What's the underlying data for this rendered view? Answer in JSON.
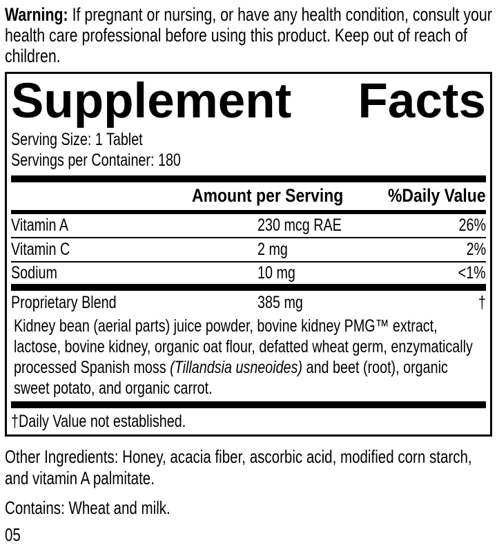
{
  "warning": {
    "lead": "Warning:",
    "text": "If pregnant or nursing, or have any health condition, consult your health care professional before using this product. Keep out of reach of children."
  },
  "panel": {
    "title_word1": "Supplement",
    "title_word2": "Facts",
    "serving_size": "Serving Size: 1 Tablet",
    "servings_per_container": "Servings per Container: 180",
    "col_amount": "Amount per Serving",
    "col_dv": "%Daily Value",
    "rows": [
      {
        "name": "Vitamin A",
        "amount": "230 mcg RAE",
        "dv": "26%"
      },
      {
        "name": "Vitamin C",
        "amount": "2 mg",
        "dv": "2%"
      },
      {
        "name": "Sodium",
        "amount": "10 mg",
        "dv": "<1%"
      }
    ],
    "blend": {
      "name": "Proprietary Blend",
      "amount": "385 mg",
      "dv": "†",
      "desc_before": "Kidney bean (aerial parts) juice powder, bovine kidney PMG™ extract, lactose, bovine kidney, organic oat flour, defatted wheat germ, enzymatically processed Spanish moss ",
      "desc_italic": "(Tillandsia usneoides)",
      "desc_after": " and beet (root), organic sweet potato, and organic carrot."
    },
    "footnote": "†Daily Value not established."
  },
  "other_ingredients": "Other Ingredients: Honey, acacia fiber, ascorbic acid, modified corn starch, and vitamin A palmitate.",
  "contains": "Contains: Wheat and milk.",
  "footer_code": "05"
}
